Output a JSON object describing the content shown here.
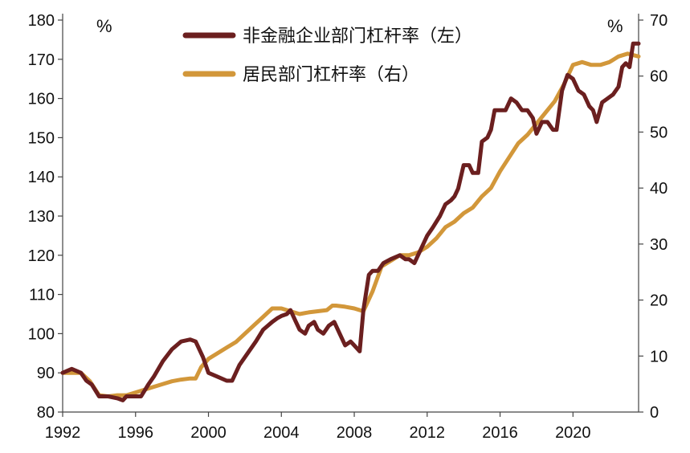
{
  "chart_data": {
    "type": "line",
    "title": "",
    "xlabel": "",
    "ylabel_left_unit": "%",
    "ylabel_right_unit": "%",
    "xlim": [
      1992,
      2023.6
    ],
    "ylim_left": [
      80,
      180
    ],
    "ylim_right": [
      0,
      70
    ],
    "x_ticks": [
      1992,
      1996,
      2000,
      2004,
      2008,
      2012,
      2016,
      2020
    ],
    "y_left_ticks": [
      80,
      90,
      100,
      110,
      120,
      130,
      140,
      150,
      160,
      170,
      180
    ],
    "y_right_ticks": [
      0,
      10,
      20,
      30,
      40,
      50,
      60,
      70
    ],
    "grid": false,
    "legend_position": "top-center",
    "series": [
      {
        "name": "非金融企业部门杠杆率（左）",
        "axis": "left",
        "color": "#6b1f1f",
        "points": [
          [
            1992.0,
            90
          ],
          [
            1992.5,
            91
          ],
          [
            1993.0,
            90
          ],
          [
            1993.3,
            88
          ],
          [
            1993.6,
            87
          ],
          [
            1994.0,
            84
          ],
          [
            1994.5,
            84
          ],
          [
            1995.0,
            83.5
          ],
          [
            1995.3,
            83
          ],
          [
            1995.5,
            84
          ],
          [
            1996.0,
            84
          ],
          [
            1996.3,
            84
          ],
          [
            1996.7,
            87
          ],
          [
            1997.0,
            89
          ],
          [
            1997.5,
            93
          ],
          [
            1998.0,
            96
          ],
          [
            1998.5,
            98
          ],
          [
            1999.0,
            98.5
          ],
          [
            1999.3,
            98
          ],
          [
            1999.7,
            94
          ],
          [
            2000.0,
            90
          ],
          [
            2000.5,
            89
          ],
          [
            2001.0,
            88
          ],
          [
            2001.3,
            88
          ],
          [
            2001.7,
            92
          ],
          [
            2002.0,
            94
          ],
          [
            2002.3,
            96
          ],
          [
            2002.6,
            98
          ],
          [
            2003.0,
            101
          ],
          [
            2003.5,
            103
          ],
          [
            2003.8,
            104
          ],
          [
            2004.0,
            104.5
          ],
          [
            2004.3,
            105
          ],
          [
            2004.5,
            106
          ],
          [
            2004.8,
            103
          ],
          [
            2005.0,
            101
          ],
          [
            2005.3,
            100
          ],
          [
            2005.5,
            102
          ],
          [
            2005.8,
            103
          ],
          [
            2006.0,
            101
          ],
          [
            2006.3,
            100
          ],
          [
            2006.6,
            102
          ],
          [
            2006.9,
            103
          ],
          [
            2007.2,
            100
          ],
          [
            2007.5,
            97
          ],
          [
            2007.8,
            98
          ],
          [
            2008.0,
            97
          ],
          [
            2008.3,
            95.5
          ],
          [
            2008.5,
            106
          ],
          [
            2008.8,
            115
          ],
          [
            2009.0,
            116
          ],
          [
            2009.3,
            116
          ],
          [
            2009.6,
            118
          ],
          [
            2010.0,
            119
          ],
          [
            2010.5,
            120
          ],
          [
            2010.8,
            119
          ],
          [
            2011.0,
            119
          ],
          [
            2011.3,
            118
          ],
          [
            2011.7,
            122
          ],
          [
            2012.0,
            125
          ],
          [
            2012.3,
            127
          ],
          [
            2012.7,
            130
          ],
          [
            2013.0,
            133
          ],
          [
            2013.3,
            134
          ],
          [
            2013.5,
            135
          ],
          [
            2013.7,
            137
          ],
          [
            2014.0,
            143
          ],
          [
            2014.3,
            143
          ],
          [
            2014.5,
            141
          ],
          [
            2014.8,
            141
          ],
          [
            2015.0,
            149
          ],
          [
            2015.3,
            150
          ],
          [
            2015.5,
            152
          ],
          [
            2015.7,
            157
          ],
          [
            2016.0,
            157
          ],
          [
            2016.3,
            157
          ],
          [
            2016.6,
            160
          ],
          [
            2016.9,
            159
          ],
          [
            2017.2,
            157
          ],
          [
            2017.5,
            157
          ],
          [
            2017.8,
            155
          ],
          [
            2018.0,
            151
          ],
          [
            2018.3,
            154
          ],
          [
            2018.6,
            154
          ],
          [
            2018.9,
            152
          ],
          [
            2019.1,
            152
          ],
          [
            2019.4,
            162
          ],
          [
            2019.7,
            166
          ],
          [
            2020.0,
            165
          ],
          [
            2020.3,
            162
          ],
          [
            2020.6,
            161
          ],
          [
            2020.9,
            158
          ],
          [
            2021.1,
            157
          ],
          [
            2021.3,
            154
          ],
          [
            2021.6,
            159
          ],
          [
            2021.9,
            160
          ],
          [
            2022.2,
            161
          ],
          [
            2022.5,
            163
          ],
          [
            2022.7,
            168
          ],
          [
            2022.9,
            169
          ],
          [
            2023.1,
            168
          ],
          [
            2023.3,
            174
          ],
          [
            2023.6,
            174
          ]
        ]
      },
      {
        "name": "居民部门杠杆率（右）",
        "axis": "right",
        "color": "#d2973a",
        "points": [
          [
            1992.0,
            7.0
          ],
          [
            1992.5,
            7.0
          ],
          [
            1993.0,
            7.0
          ],
          [
            1993.5,
            5.5
          ],
          [
            1994.0,
            3.0
          ],
          [
            1994.5,
            2.8
          ],
          [
            1995.0,
            3.0
          ],
          [
            1995.5,
            3.0
          ],
          [
            1996.0,
            3.5
          ],
          [
            1996.5,
            4.0
          ],
          [
            1997.0,
            4.5
          ],
          [
            1997.5,
            5.0
          ],
          [
            1998.0,
            5.5
          ],
          [
            1998.5,
            5.8
          ],
          [
            1999.0,
            6.0
          ],
          [
            1999.3,
            6.0
          ],
          [
            1999.6,
            8.0
          ],
          [
            2000.0,
            9.5
          ],
          [
            2000.5,
            10.5
          ],
          [
            2001.0,
            11.5
          ],
          [
            2001.5,
            12.5
          ],
          [
            2002.0,
            14.0
          ],
          [
            2002.5,
            15.5
          ],
          [
            2003.0,
            17.0
          ],
          [
            2003.5,
            18.5
          ],
          [
            2004.0,
            18.5
          ],
          [
            2004.5,
            18.0
          ],
          [
            2005.0,
            17.5
          ],
          [
            2005.5,
            17.8
          ],
          [
            2006.0,
            18.0
          ],
          [
            2006.5,
            18.2
          ],
          [
            2006.8,
            19.0
          ],
          [
            2007.0,
            19.0
          ],
          [
            2007.5,
            18.8
          ],
          [
            2008.0,
            18.5
          ],
          [
            2008.5,
            18.0
          ],
          [
            2009.0,
            21.5
          ],
          [
            2009.5,
            26.0
          ],
          [
            2010.0,
            27.0
          ],
          [
            2010.5,
            28.0
          ],
          [
            2011.0,
            28.0
          ],
          [
            2011.5,
            28.5
          ],
          [
            2012.0,
            29.5
          ],
          [
            2012.5,
            31.0
          ],
          [
            2013.0,
            33.0
          ],
          [
            2013.5,
            34.0
          ],
          [
            2014.0,
            35.5
          ],
          [
            2014.5,
            36.5
          ],
          [
            2015.0,
            38.5
          ],
          [
            2015.5,
            40.0
          ],
          [
            2016.0,
            43.0
          ],
          [
            2016.5,
            45.5
          ],
          [
            2017.0,
            48.0
          ],
          [
            2017.5,
            49.5
          ],
          [
            2018.0,
            51.5
          ],
          [
            2018.5,
            53.5
          ],
          [
            2019.0,
            55.5
          ],
          [
            2019.5,
            58.5
          ],
          [
            2020.0,
            62.0
          ],
          [
            2020.5,
            62.5
          ],
          [
            2021.0,
            62.0
          ],
          [
            2021.5,
            62.0
          ],
          [
            2022.0,
            62.5
          ],
          [
            2022.5,
            63.5
          ],
          [
            2023.0,
            64.0
          ],
          [
            2023.6,
            63.5
          ]
        ]
      }
    ]
  }
}
